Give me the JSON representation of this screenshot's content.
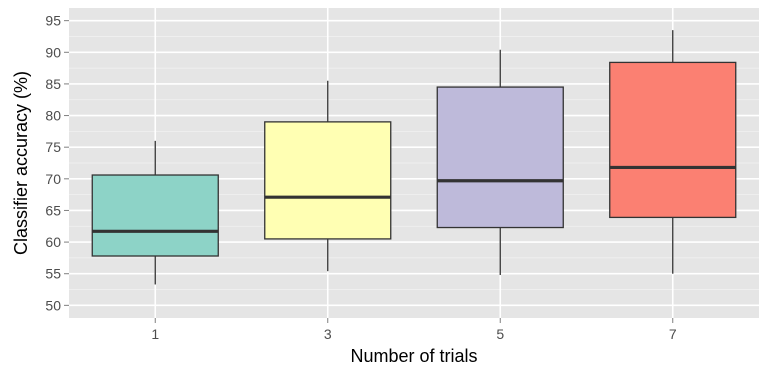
{
  "chart_data": {
    "type": "boxplot",
    "title": "",
    "xlabel": "Number of trials",
    "ylabel": "Classifier accuracy (%)",
    "categories": [
      "1",
      "3",
      "5",
      "7"
    ],
    "ylim": [
      48,
      97
    ],
    "y_ticks": [
      50,
      55,
      60,
      65,
      70,
      75,
      80,
      85,
      90,
      95
    ],
    "y_tick_labels": [
      "50",
      "55",
      "60",
      "65",
      "70",
      "75",
      "80",
      "85",
      "90",
      "95"
    ],
    "grid": true,
    "background": "#e5e5e5",
    "boxes": [
      {
        "category": "1",
        "whisker_low": 53.3,
        "q1": 57.8,
        "median": 61.7,
        "q3": 70.6,
        "whisker_high": 76.0,
        "color": "#8dd3c7"
      },
      {
        "category": "3",
        "whisker_low": 55.4,
        "q1": 60.5,
        "median": 67.1,
        "q3": 79.0,
        "whisker_high": 85.5,
        "color": "#ffffb3"
      },
      {
        "category": "5",
        "whisker_low": 54.8,
        "q1": 62.3,
        "median": 69.7,
        "q3": 84.5,
        "whisker_high": 90.4,
        "color": "#bebada"
      },
      {
        "category": "7",
        "whisker_low": 55.0,
        "q1": 63.9,
        "median": 71.8,
        "q3": 88.4,
        "whisker_high": 93.5,
        "color": "#fb8072"
      }
    ]
  }
}
